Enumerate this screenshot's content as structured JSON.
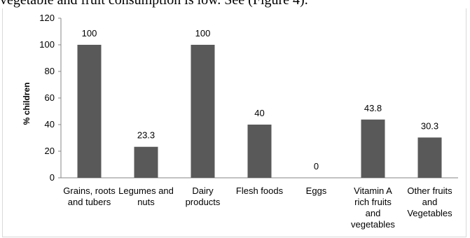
{
  "caption": "vegetable and fruit consumption is low. See (Figure 4).",
  "chart_data": {
    "type": "bar",
    "title": "",
    "xlabel": "",
    "ylabel": "% children",
    "ylim": [
      0,
      120
    ],
    "yticks": [
      0,
      20,
      40,
      60,
      80,
      100,
      120
    ],
    "grid": false,
    "legend": "none",
    "bar_color": "#595959",
    "categories": [
      [
        "Grains, roots",
        "and tubers"
      ],
      [
        "Legumes and",
        "nuts"
      ],
      [
        "Dairy",
        "products"
      ],
      [
        "Flesh foods"
      ],
      [
        "Eggs"
      ],
      [
        "Vitamin A",
        "rich fruits",
        "and",
        "vegetables"
      ],
      [
        "Other fruits",
        "and",
        "Vegetables"
      ]
    ],
    "values": [
      100,
      23.3,
      100,
      40,
      0,
      43.8,
      30.3
    ],
    "value_labels": [
      "100",
      "23.3",
      "100",
      "40",
      "0",
      "43.8",
      "30.3"
    ]
  }
}
